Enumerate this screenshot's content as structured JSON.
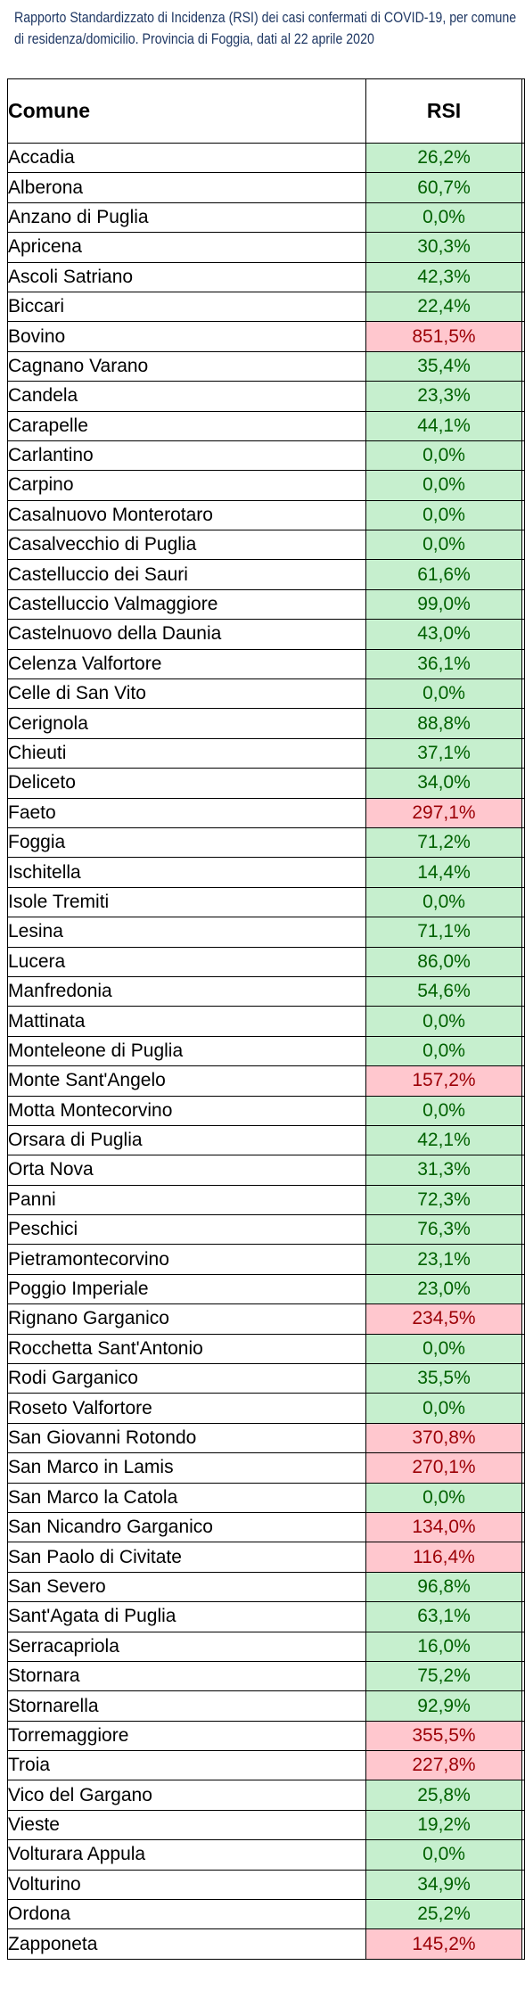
{
  "caption": {
    "line1": "Rapporto Standardizzato di Incidenza (RSI) dei casi confermati di COVID-19, per comune",
    "line2": "di residenza/domicilio. Provincia di Foggia, dati al 22 aprile 2020"
  },
  "table": {
    "headers": [
      "Comune",
      "RSI"
    ],
    "colors": {
      "green_bg": "#C6EFCE",
      "green_text": "#006100",
      "red_bg": "#FFC7CE",
      "red_text": "#9C0006",
      "caption": "#1F3864"
    },
    "rows": [
      {
        "comune": "Accadia",
        "rsi": "26,2%",
        "status": "ok"
      },
      {
        "comune": "Alberona",
        "rsi": "60,7%",
        "status": "ok"
      },
      {
        "comune": "Anzano di Puglia",
        "rsi": "0,0%",
        "status": "ok"
      },
      {
        "comune": "Apricena",
        "rsi": "30,3%",
        "status": "ok"
      },
      {
        "comune": "Ascoli Satriano",
        "rsi": "42,3%",
        "status": "ok"
      },
      {
        "comune": "Biccari",
        "rsi": "22,4%",
        "status": "ok"
      },
      {
        "comune": "Bovino",
        "rsi": "851,5%",
        "status": "high"
      },
      {
        "comune": "Cagnano Varano",
        "rsi": "35,4%",
        "status": "ok"
      },
      {
        "comune": "Candela",
        "rsi": "23,3%",
        "status": "ok"
      },
      {
        "comune": "Carapelle",
        "rsi": "44,1%",
        "status": "ok"
      },
      {
        "comune": "Carlantino",
        "rsi": "0,0%",
        "status": "ok"
      },
      {
        "comune": "Carpino",
        "rsi": "0,0%",
        "status": "ok"
      },
      {
        "comune": "Casalnuovo Monterotaro",
        "rsi": "0,0%",
        "status": "ok"
      },
      {
        "comune": "Casalvecchio di Puglia",
        "rsi": "0,0%",
        "status": "ok"
      },
      {
        "comune": "Castelluccio dei Sauri",
        "rsi": "61,6%",
        "status": "ok"
      },
      {
        "comune": "Castelluccio Valmaggiore",
        "rsi": "99,0%",
        "status": "ok"
      },
      {
        "comune": "Castelnuovo della Daunia",
        "rsi": "43,0%",
        "status": "ok"
      },
      {
        "comune": "Celenza Valfortore",
        "rsi": "36,1%",
        "status": "ok"
      },
      {
        "comune": "Celle di San Vito",
        "rsi": "0,0%",
        "status": "ok"
      },
      {
        "comune": "Cerignola",
        "rsi": "88,8%",
        "status": "ok"
      },
      {
        "comune": "Chieuti",
        "rsi": "37,1%",
        "status": "ok"
      },
      {
        "comune": "Deliceto",
        "rsi": "34,0%",
        "status": "ok"
      },
      {
        "comune": "Faeto",
        "rsi": "297,1%",
        "status": "high"
      },
      {
        "comune": "Foggia",
        "rsi": "71,2%",
        "status": "ok"
      },
      {
        "comune": "Ischitella",
        "rsi": "14,4%",
        "status": "ok"
      },
      {
        "comune": "Isole Tremiti",
        "rsi": "0,0%",
        "status": "ok"
      },
      {
        "comune": "Lesina",
        "rsi": "71,1%",
        "status": "ok"
      },
      {
        "comune": "Lucera",
        "rsi": "86,0%",
        "status": "ok"
      },
      {
        "comune": "Manfredonia",
        "rsi": "54,6%",
        "status": "ok"
      },
      {
        "comune": "Mattinata",
        "rsi": "0,0%",
        "status": "ok"
      },
      {
        "comune": "Monteleone di Puglia",
        "rsi": "0,0%",
        "status": "ok"
      },
      {
        "comune": "Monte Sant'Angelo",
        "rsi": "157,2%",
        "status": "high"
      },
      {
        "comune": "Motta Montecorvino",
        "rsi": "0,0%",
        "status": "ok"
      },
      {
        "comune": "Orsara di Puglia",
        "rsi": "42,1%",
        "status": "ok"
      },
      {
        "comune": "Orta Nova",
        "rsi": "31,3%",
        "status": "ok"
      },
      {
        "comune": "Panni",
        "rsi": "72,3%",
        "status": "ok"
      },
      {
        "comune": "Peschici",
        "rsi": "76,3%",
        "status": "ok"
      },
      {
        "comune": "Pietramontecorvino",
        "rsi": "23,1%",
        "status": "ok"
      },
      {
        "comune": "Poggio Imperiale",
        "rsi": "23,0%",
        "status": "ok"
      },
      {
        "comune": "Rignano Garganico",
        "rsi": "234,5%",
        "status": "high"
      },
      {
        "comune": "Rocchetta Sant'Antonio",
        "rsi": "0,0%",
        "status": "ok"
      },
      {
        "comune": "Rodi Garganico",
        "rsi": "35,5%",
        "status": "ok"
      },
      {
        "comune": "Roseto Valfortore",
        "rsi": "0,0%",
        "status": "ok"
      },
      {
        "comune": "San Giovanni Rotondo",
        "rsi": "370,8%",
        "status": "high"
      },
      {
        "comune": "San Marco in Lamis",
        "rsi": "270,1%",
        "status": "high"
      },
      {
        "comune": "San Marco la Catola",
        "rsi": "0,0%",
        "status": "ok"
      },
      {
        "comune": "San Nicandro Garganico",
        "rsi": "134,0%",
        "status": "high"
      },
      {
        "comune": "San Paolo di Civitate",
        "rsi": "116,4%",
        "status": "high"
      },
      {
        "comune": "San Severo",
        "rsi": "96,8%",
        "status": "ok"
      },
      {
        "comune": "Sant'Agata di Puglia",
        "rsi": "63,1%",
        "status": "ok"
      },
      {
        "comune": "Serracapriola",
        "rsi": "16,0%",
        "status": "ok"
      },
      {
        "comune": "Stornara",
        "rsi": "75,2%",
        "status": "ok"
      },
      {
        "comune": "Stornarella",
        "rsi": "92,9%",
        "status": "ok"
      },
      {
        "comune": "Torremaggiore",
        "rsi": "355,5%",
        "status": "high"
      },
      {
        "comune": "Troia",
        "rsi": "227,8%",
        "status": "high"
      },
      {
        "comune": "Vico del Gargano",
        "rsi": "25,8%",
        "status": "ok"
      },
      {
        "comune": "Vieste",
        "rsi": "19,2%",
        "status": "ok"
      },
      {
        "comune": "Volturara Appula",
        "rsi": "0,0%",
        "status": "ok"
      },
      {
        "comune": "Volturino",
        "rsi": "34,9%",
        "status": "ok"
      },
      {
        "comune": "Ordona",
        "rsi": "25,2%",
        "status": "ok"
      },
      {
        "comune": "Zapponeta",
        "rsi": "145,2%",
        "status": "high"
      }
    ]
  }
}
